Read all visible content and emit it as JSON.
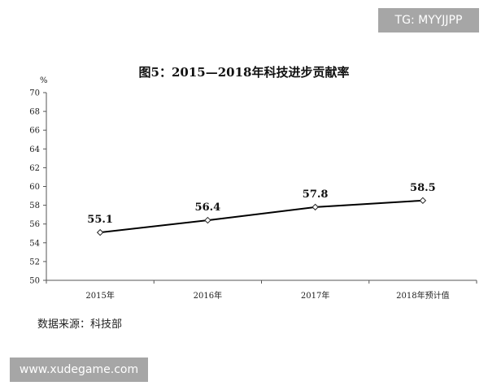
{
  "watermark_top": "TG: MYYJJPP",
  "watermark_bottom": "www.xudegame.com",
  "source_note": "数据来源：科技部",
  "chart_data": {
    "type": "line",
    "title": "图5：2015—2018年科技进步贡献率",
    "unit": "%",
    "categories": [
      "2015年",
      "2016年",
      "2017年",
      "2018年预计值"
    ],
    "series": [
      {
        "values": [
          55.1,
          56.4,
          57.8,
          58.5
        ],
        "labels": [
          "55.1",
          "56.4",
          "57.8",
          "58.5"
        ]
      }
    ],
    "ylim": [
      50,
      70
    ],
    "yticks": [
      50,
      52,
      54,
      56,
      58,
      60,
      62,
      64,
      66,
      68,
      70
    ],
    "grid": false,
    "line_color": "#000000"
  }
}
